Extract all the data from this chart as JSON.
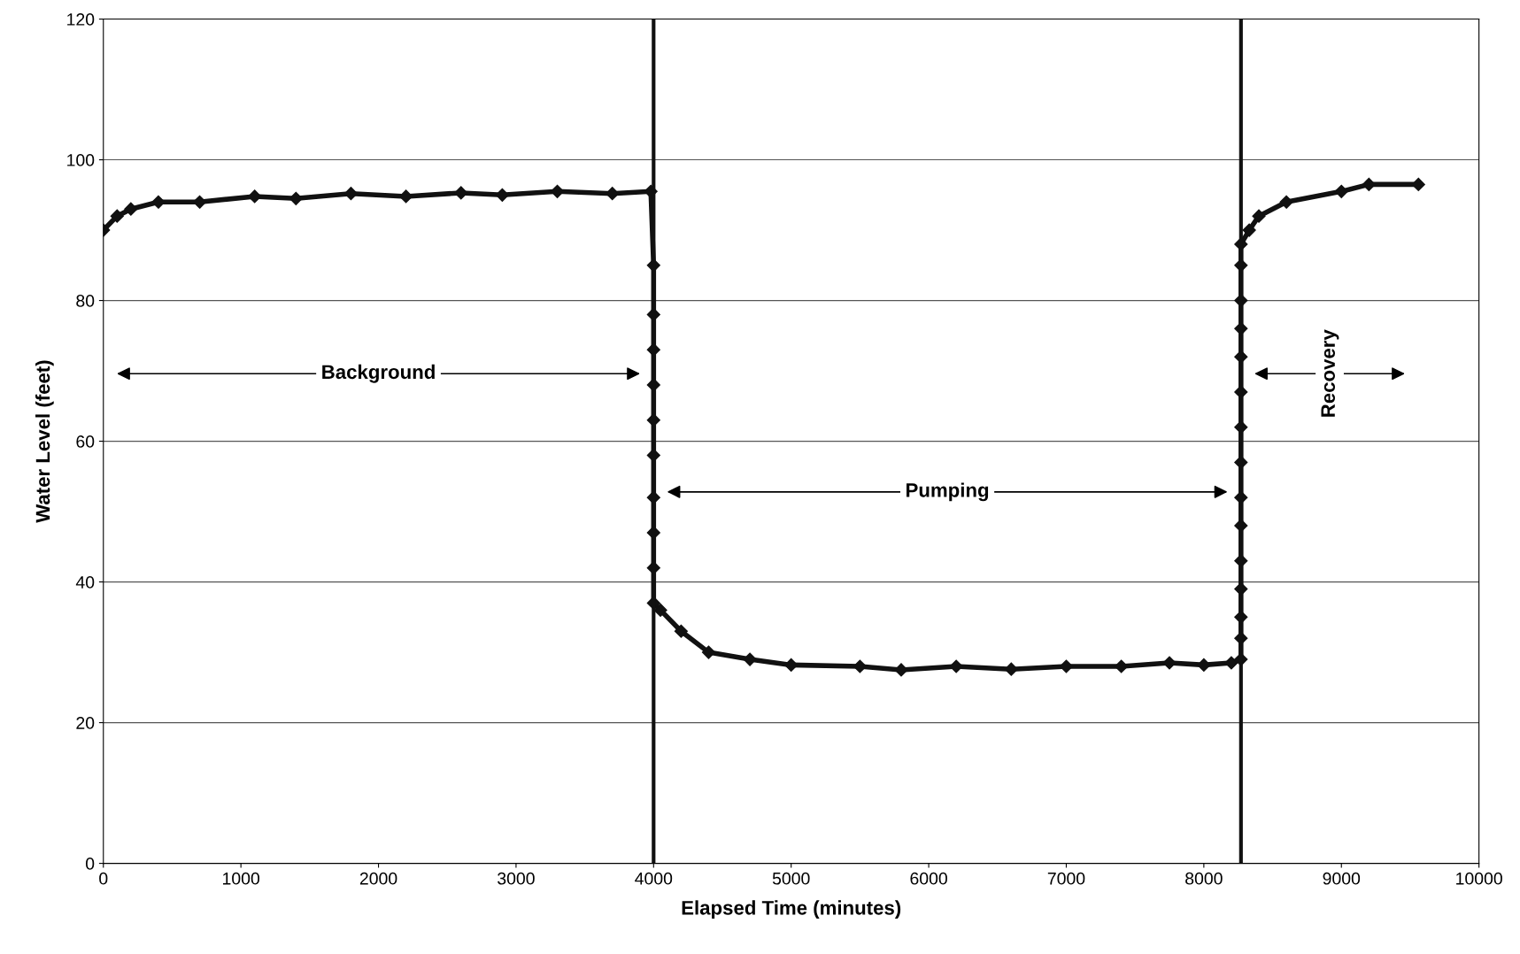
{
  "chart_data": {
    "type": "line",
    "xlabel": "Elapsed Time (minutes)",
    "ylabel": "Water Level (feet)",
    "xlim": [
      0,
      10000
    ],
    "xticks": [
      0,
      1000,
      2000,
      3000,
      4000,
      5000,
      6000,
      7000,
      8000,
      9000,
      10000
    ],
    "ylim": [
      0,
      120
    ],
    "yticks": [
      0,
      20,
      40,
      60,
      80,
      100,
      120
    ],
    "grid": "y",
    "marker": "diamond",
    "line_style": "solid",
    "series": [
      {
        "color": "#111111",
        "x": [
          0,
          100,
          200,
          400,
          700,
          1100,
          1400,
          1800,
          2200,
          2600,
          2900,
          3300,
          3700,
          3980,
          4000,
          4000,
          4000,
          4000,
          4000,
          4000,
          4000,
          4000,
          4000,
          4000,
          4050,
          4200,
          4400,
          4700,
          5000,
          5500,
          5800,
          6200,
          6600,
          7000,
          7400,
          7750,
          8000,
          8200,
          8270,
          8270,
          8270,
          8270,
          8270,
          8270,
          8270,
          8270,
          8270,
          8270,
          8270,
          8270,
          8270,
          8270,
          8270,
          8330,
          8400,
          8600,
          9000,
          9200,
          9560
        ],
        "values": [
          90,
          92,
          93,
          94,
          94,
          94.8,
          94.5,
          95.2,
          94.8,
          95.3,
          95,
          95.5,
          95.2,
          95.5,
          85,
          78,
          73,
          68,
          63,
          58,
          52,
          47,
          42,
          37,
          36,
          33,
          30,
          29,
          28.2,
          28,
          27.5,
          28,
          27.6,
          28,
          28,
          28.5,
          28.2,
          28.5,
          29,
          32,
          35,
          39,
          43,
          48,
          52,
          57,
          62,
          67,
          72,
          76,
          80,
          85,
          88,
          90,
          92,
          94,
          95.5,
          96.5,
          96.5
        ]
      }
    ],
    "ref_lines": [
      {
        "axis": "x",
        "value": 4000,
        "color": "#111111"
      },
      {
        "axis": "x",
        "value": 8270,
        "color": "#111111"
      }
    ],
    "annotations": [
      "Background",
      "Pumping",
      "Recovery"
    ]
  }
}
